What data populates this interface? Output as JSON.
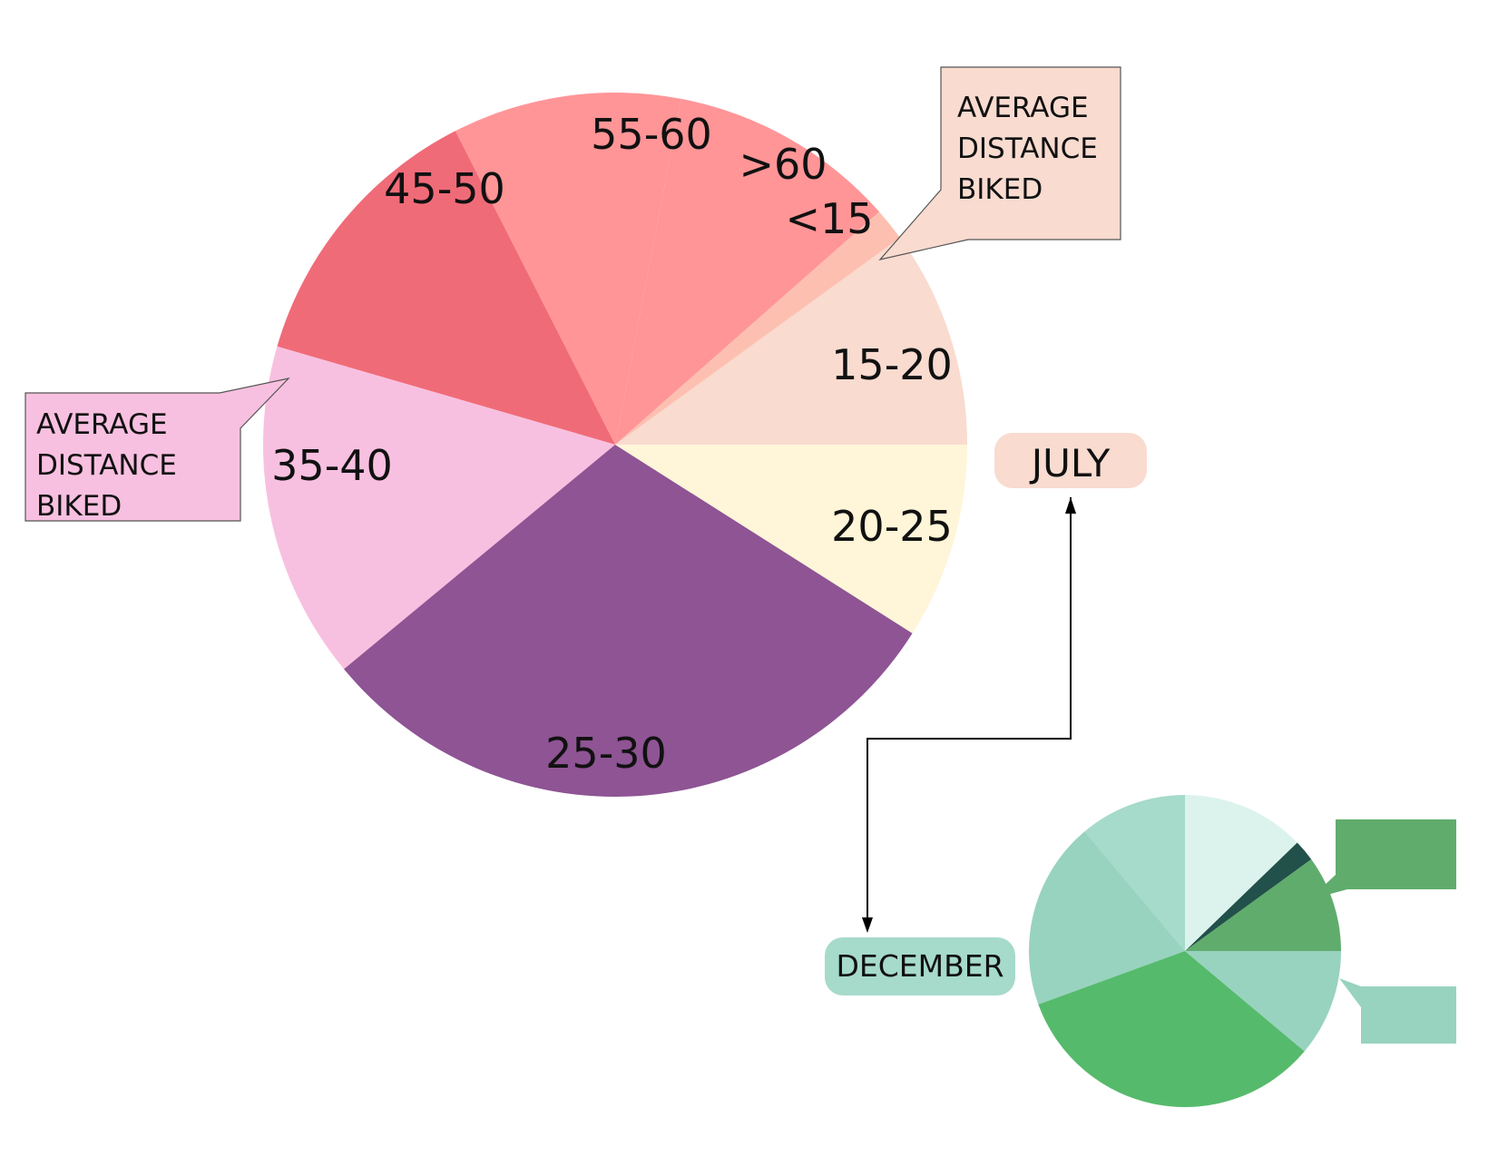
{
  "chart_data": [
    {
      "type": "pie",
      "title": "",
      "category_label": "JULY",
      "slices": [
        {
          "label": "15-20",
          "value": 10,
          "color": "#F9DBD0"
        },
        {
          "label": "<15",
          "value": 1.5,
          "color": "#FDC0B0"
        },
        {
          "label": ">60",
          "value": 10.5,
          "color": "#FF9597"
        },
        {
          "label": "55-60",
          "value": 10.5,
          "color": "#FF9597"
        },
        {
          "label": "45-50",
          "value": 13,
          "color": "#F06B78"
        },
        {
          "label": "35-40",
          "value": 15.5,
          "color": "#F8C0E0"
        },
        {
          "label": "25-30",
          "value": 30,
          "color": "#8E5494"
        },
        {
          "label": "20-25",
          "value": 9,
          "color": "#FFF5D8"
        }
      ]
    },
    {
      "type": "pie",
      "title": "",
      "category_label": "DECEMBER",
      "slices": [
        {
          "label": "",
          "value": 9,
          "color": "#60AC6C"
        },
        {
          "label": "",
          "value": 2,
          "color": "#22504A"
        },
        {
          "label": "",
          "value": 11.5,
          "color": "#DCF3ED"
        },
        {
          "label": "",
          "value": 10,
          "color": "#A6DACB"
        },
        {
          "label": "",
          "value": 17.5,
          "color": "#98D3BF"
        },
        {
          "label": "",
          "value": 30,
          "color": "#56BA6C"
        },
        {
          "label": "",
          "value": 10,
          "color": "#98D3BF"
        }
      ]
    }
  ],
  "callouts": [
    {
      "lines": [
        "AVERAGE",
        "DISTANCE",
        "BIKED"
      ],
      "color": "#F8C0E0"
    },
    {
      "lines": [
        "AVERAGE",
        "DISTANCE",
        "BIKED"
      ],
      "color": "#F9DBD0"
    }
  ],
  "legend_labels": {
    "july": {
      "text": "JULY",
      "color": "#F9DBD0"
    },
    "december": {
      "text": "DECEMBER",
      "color": "#A6DACB"
    }
  },
  "small_boxes": [
    {
      "color": "#60AC6C"
    },
    {
      "color": "#98D3BF"
    }
  ]
}
